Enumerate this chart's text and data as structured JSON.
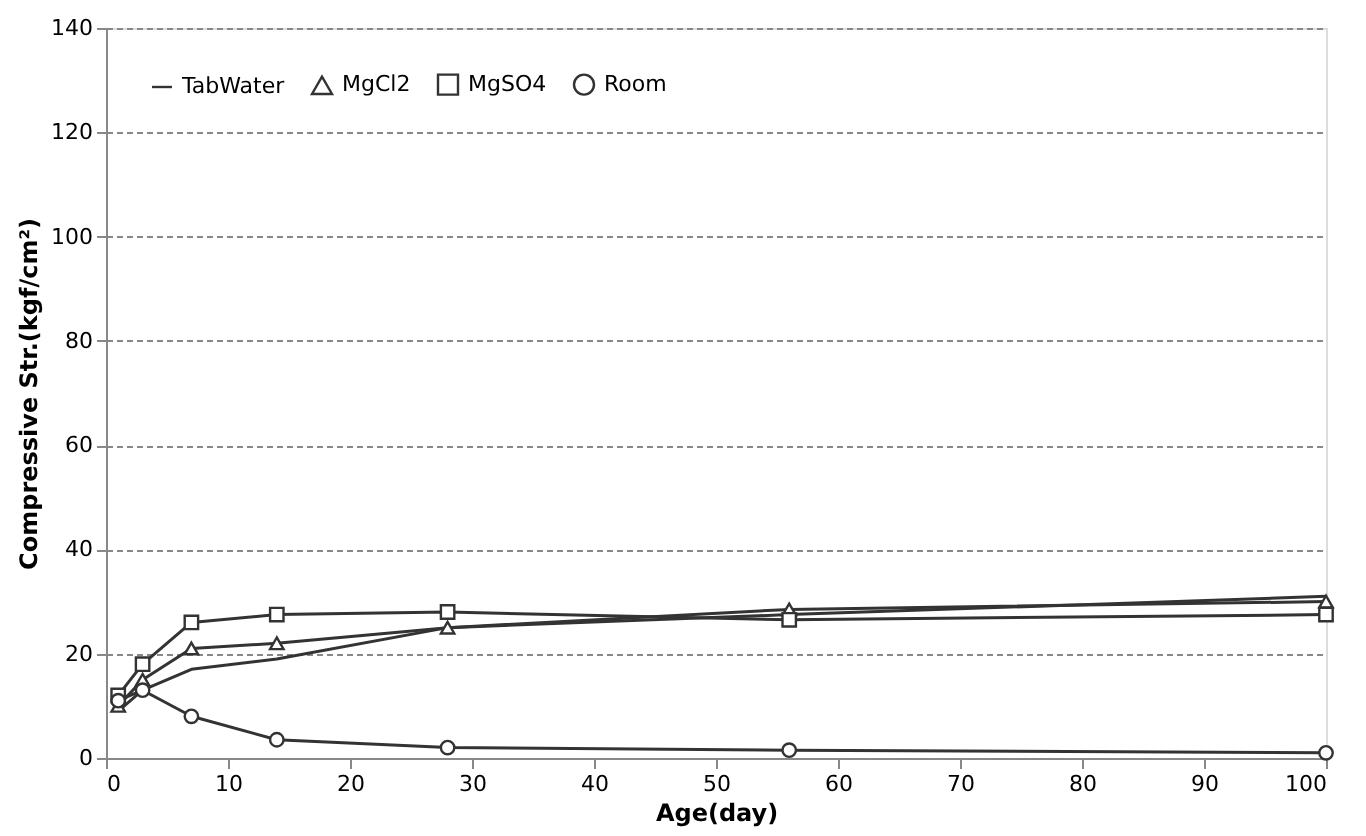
{
  "chart_data": {
    "type": "line",
    "xlabel": "Age(day)",
    "ylabel": "Compressive Str.(kgf/cm²)",
    "x": [
      1,
      3,
      7,
      14,
      28,
      56,
      100
    ],
    "series": [
      {
        "name": "TabWater",
        "color": "#333333",
        "marker": "none",
        "values": [
          9,
          13,
          17,
          19,
          25,
          27.5,
          31
        ]
      },
      {
        "name": "MgCl2",
        "color": "#333333",
        "marker": "triangle",
        "values": [
          10,
          15,
          21,
          22,
          25,
          28.5,
          30
        ]
      },
      {
        "name": "MgSO4",
        "color": "#333333",
        "marker": "square",
        "values": [
          12,
          18,
          26,
          27.5,
          28,
          26.5,
          27.5
        ]
      },
      {
        "name": "Room",
        "color": "#333333",
        "marker": "circle",
        "values": [
          11,
          13,
          8,
          3.5,
          2,
          1.5,
          1
        ]
      }
    ],
    "xlim": [
      0,
      100
    ],
    "xticks": [
      0,
      10,
      20,
      30,
      40,
      50,
      60,
      70,
      80,
      90,
      100
    ],
    "ylim": [
      0,
      140
    ],
    "yticks": [
      0,
      20,
      40,
      60,
      80,
      100,
      120,
      140
    ],
    "grid": "y",
    "legend": "top left",
    "line_style": "solid"
  }
}
